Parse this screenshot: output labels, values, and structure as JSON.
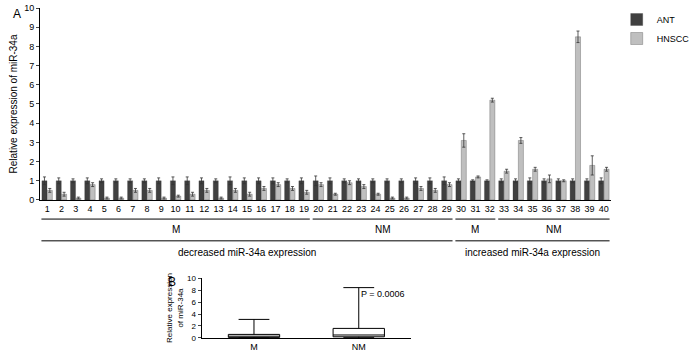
{
  "chart_data": [
    {
      "type": "bar",
      "panel": "A",
      "y_label": "Relative expression of miR-34a",
      "categories": [
        "1",
        "2",
        "3",
        "4",
        "5",
        "6",
        "7",
        "8",
        "9",
        "10",
        "11",
        "12",
        "13",
        "14",
        "15",
        "16",
        "17",
        "18",
        "19",
        "20",
        "21",
        "22",
        "23",
        "24",
        "25",
        "26",
        "27",
        "28",
        "29",
        "30",
        "31",
        "32",
        "33",
        "34",
        "35",
        "36",
        "37",
        "38",
        "39",
        "40"
      ],
      "series": [
        {
          "name": "ANT",
          "color": "#404040",
          "values": [
            1,
            1,
            1,
            1,
            1,
            1,
            1,
            1,
            1,
            1,
            1,
            1,
            1,
            1,
            1,
            1,
            1,
            1,
            1,
            1,
            1,
            1,
            1,
            1,
            1,
            1,
            1,
            1,
            1,
            1,
            1,
            1,
            1,
            1,
            1,
            1,
            1,
            1,
            1,
            1
          ],
          "errors": [
            0.2,
            0.15,
            0.1,
            0.15,
            0.1,
            0.1,
            0.1,
            0.1,
            0.15,
            0.2,
            0.2,
            0.15,
            0.1,
            0.2,
            0.15,
            0.15,
            0.15,
            0.1,
            0.15,
            0.25,
            0.15,
            0.1,
            0.1,
            0.1,
            0.1,
            0.1,
            0.15,
            0.15,
            0.2,
            0.1,
            0.05,
            0.05,
            0.1,
            0.1,
            0.15,
            0.1,
            0.1,
            0.1,
            0.1,
            0.15
          ]
        },
        {
          "name": "HNSCC",
          "color": "#bfbfbf",
          "values": [
            0.5,
            0.3,
            0.1,
            0.8,
            0.1,
            0.1,
            0.5,
            0.5,
            0.1,
            0.2,
            0.3,
            0.5,
            0.1,
            0.5,
            0.3,
            0.6,
            0.8,
            0.6,
            0.4,
            0.8,
            0.3,
            0.9,
            0.7,
            0.3,
            0.1,
            0.1,
            0.6,
            0.5,
            0.8,
            3.1,
            1.2,
            5.2,
            1.5,
            3.1,
            1.6,
            1.1,
            1.0,
            8.5,
            1.8,
            1.6
          ],
          "errors": [
            0.1,
            0.1,
            0.05,
            0.1,
            0.05,
            0.05,
            0.1,
            0.1,
            0.05,
            0.05,
            0.1,
            0.1,
            0.05,
            0.1,
            0.1,
            0.1,
            0.1,
            0.1,
            0.1,
            0.1,
            0.05,
            0.1,
            0.1,
            0.05,
            0.05,
            0.05,
            0.1,
            0.1,
            0.1,
            0.35,
            0.05,
            0.1,
            0.1,
            0.15,
            0.1,
            0.2,
            0.05,
            0.3,
            0.5,
            0.1
          ]
        }
      ],
      "ylim": [
        0,
        10
      ],
      "yticks": [
        0,
        1,
        2,
        3,
        4,
        5,
        6,
        7,
        8,
        9,
        10
      ],
      "legend": "top right",
      "grid": false,
      "groups": [
        {
          "label": "M",
          "first": "1",
          "last": "19"
        },
        {
          "label": "NM",
          "first": "20",
          "last": "29"
        },
        {
          "label": "M",
          "first": "30",
          "last": "32"
        },
        {
          "label": "NM",
          "first": "33",
          "last": "40"
        }
      ],
      "supergroups": [
        {
          "label": "decreased miR-34a expression",
          "first": "1",
          "last": "29"
        },
        {
          "label": "increased miR-34a expression",
          "first": "30",
          "last": "40"
        }
      ]
    },
    {
      "type": "box",
      "panel": "B",
      "y_label": "Relative expression of miR-34a",
      "categories": [
        "M",
        "NM"
      ],
      "min": [
        0,
        0.05
      ],
      "q1": [
        0.1,
        0.2
      ],
      "median": [
        0.3,
        0.5
      ],
      "q3": [
        0.6,
        1.6
      ],
      "max": [
        3.1,
        8.4
      ],
      "color": "#000000",
      "ylim": [
        0,
        10
      ],
      "yticks": [
        0,
        2,
        4,
        6,
        8,
        10
      ],
      "annotations": [
        "P = 0.0006"
      ]
    }
  ]
}
